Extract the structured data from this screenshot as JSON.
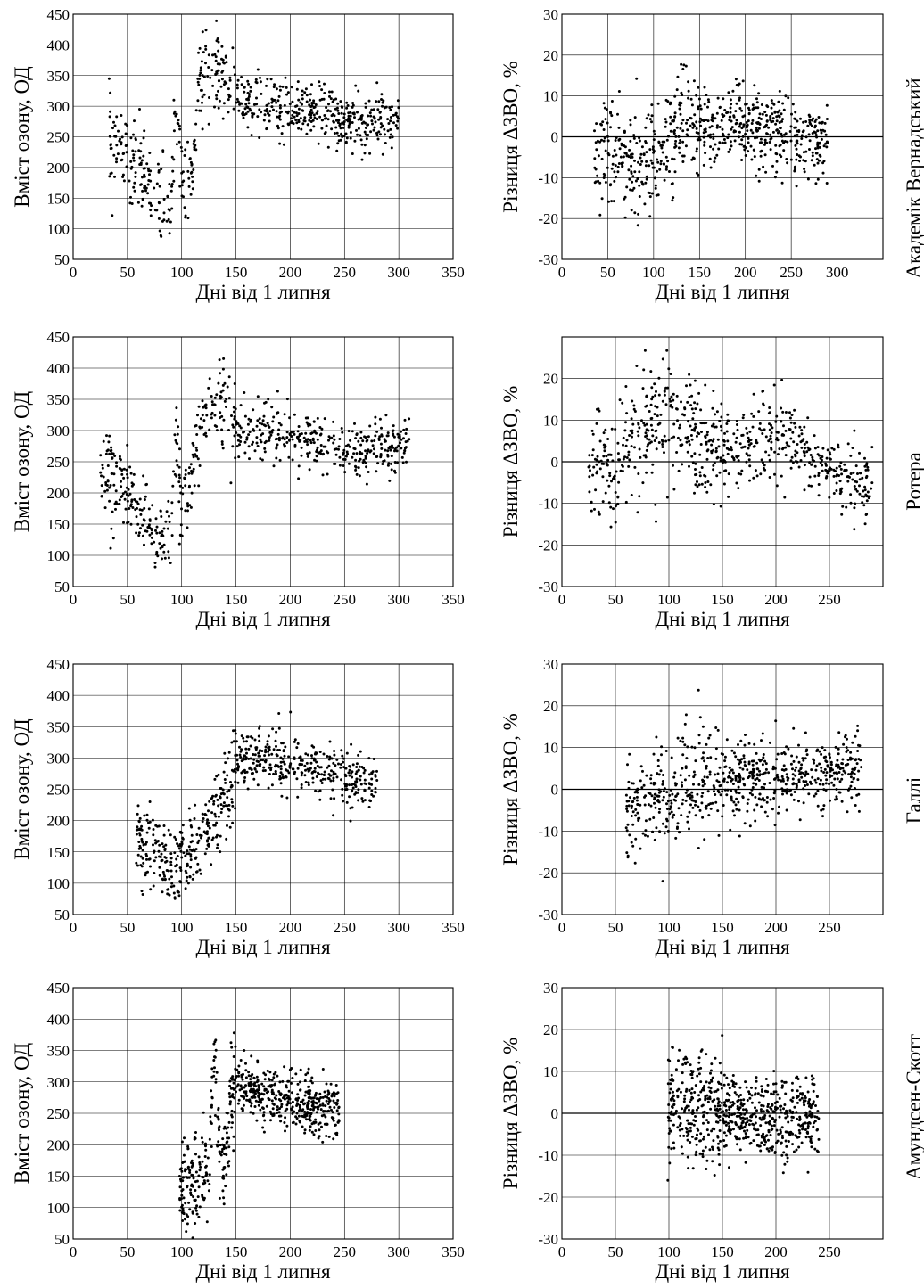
{
  "figure_caption": "",
  "common": {
    "xlabel": "Дні від 1 липня",
    "ozone_ylabel": "Вміст озону, ОД",
    "diff_ylabel": "Різниця ΔЗВО, %"
  },
  "stations": [
    {
      "name": "Академік Вернадський"
    },
    {
      "name": "Ротера"
    },
    {
      "name": "Галлі"
    },
    {
      "name": "Амундсен-Скотт"
    }
  ],
  "chart_data": [
    {
      "id": "vernadsky-ozone",
      "type": "scatter",
      "station": "Академік Вернадський",
      "title": "",
      "xlabel": "Дні від 1 липня",
      "ylabel": "Вміст озону, ОД",
      "xlim": [
        0,
        350
      ],
      "ylim": [
        50,
        450
      ],
      "xticks": [
        0,
        50,
        100,
        150,
        200,
        250,
        300,
        350
      ],
      "yticks": [
        50,
        100,
        150,
        200,
        250,
        300,
        350,
        400,
        450
      ],
      "grid": true,
      "x": [
        33,
        40,
        50,
        60,
        70,
        80,
        90,
        95,
        100,
        105,
        110,
        115,
        120,
        130,
        140,
        150,
        170,
        200,
        230,
        250,
        270,
        290,
        300
      ],
      "y": [
        250,
        235,
        215,
        190,
        170,
        145,
        140,
        280,
        190,
        160,
        180,
        330,
        350,
        360,
        340,
        310,
        305,
        300,
        290,
        275,
        270,
        280,
        285
      ]
    },
    {
      "id": "vernadsky-diff",
      "type": "scatter",
      "station": "Академік Вернадський",
      "title": "",
      "xlabel": "Дні від 1 липня",
      "ylabel": "Різниця ΔЗВО, %",
      "xlim": [
        0,
        350
      ],
      "ylim": [
        -30,
        30
      ],
      "xticks": [
        0,
        50,
        100,
        150,
        200,
        250,
        300
      ],
      "yticks": [
        -30,
        -20,
        -10,
        0,
        10,
        20,
        30
      ],
      "grid": true,
      "zero_line": true,
      "x": [
        35,
        45,
        50,
        60,
        70,
        80,
        90,
        100,
        110,
        120,
        130,
        150,
        170,
        200,
        230,
        250,
        270,
        290
      ],
      "y": [
        -5,
        -2,
        -4,
        -3,
        -6,
        -8,
        -7,
        -6,
        -4,
        -2,
        2,
        2,
        2,
        3,
        1,
        0,
        -1,
        -2
      ]
    },
    {
      "id": "rothera-ozone",
      "type": "scatter",
      "station": "Ротера",
      "title": "",
      "xlabel": "Дні від 1 липня",
      "ylabel": "Вміст озону, ОД",
      "xlim": [
        0,
        350
      ],
      "ylim": [
        50,
        450
      ],
      "xticks": [
        0,
        50,
        100,
        150,
        200,
        250,
        300,
        350
      ],
      "yticks": [
        50,
        100,
        150,
        200,
        250,
        300,
        350,
        400,
        450
      ],
      "grid": true,
      "x": [
        25,
        30,
        40,
        50,
        60,
        70,
        80,
        90,
        95,
        100,
        110,
        120,
        130,
        140,
        150,
        170,
        200,
        230,
        250,
        270,
        290,
        310
      ],
      "y": [
        240,
        230,
        225,
        195,
        175,
        150,
        135,
        135,
        280,
        155,
        220,
        330,
        350,
        340,
        305,
        300,
        290,
        280,
        265,
        260,
        270,
        275
      ]
    },
    {
      "id": "rothera-diff",
      "type": "scatter",
      "station": "Ротера",
      "title": "",
      "xlabel": "Дні від 1 липня",
      "ylabel": "Різниця ΔЗВО, %",
      "xlim": [
        0,
        300
      ],
      "ylim": [
        -30,
        30
      ],
      "xticks": [
        0,
        50,
        100,
        150,
        200,
        250
      ],
      "yticks": [
        -30,
        -20,
        -10,
        0,
        10,
        20
      ],
      "grid": true,
      "zero_line": true,
      "x": [
        25,
        35,
        45,
        55,
        65,
        75,
        85,
        95,
        105,
        115,
        125,
        135,
        150,
        170,
        190,
        200,
        210,
        230,
        250,
        270,
        290
      ],
      "y": [
        2,
        0,
        -3,
        2,
        5,
        7,
        9,
        10,
        10,
        9,
        7,
        4,
        3,
        3,
        6,
        8,
        6,
        2,
        -1,
        -4,
        -6
      ]
    },
    {
      "id": "halley-ozone",
      "type": "scatter",
      "station": "Галлі",
      "title": "",
      "xlabel": "Дні від 1 липня",
      "ylabel": "Вміст озону, ОД",
      "xlim": [
        0,
        350
      ],
      "ylim": [
        50,
        450
      ],
      "xticks": [
        0,
        50,
        100,
        150,
        200,
        250,
        300,
        350
      ],
      "yticks": [
        50,
        100,
        150,
        200,
        250,
        300,
        350,
        400,
        450
      ],
      "grid": true,
      "x": [
        58,
        65,
        75,
        85,
        95,
        105,
        115,
        125,
        135,
        145,
        155,
        165,
        180,
        200,
        220,
        240,
        260,
        280
      ],
      "y": [
        175,
        160,
        145,
        130,
        125,
        135,
        160,
        190,
        220,
        250,
        300,
        305,
        295,
        290,
        285,
        275,
        265,
        260
      ]
    },
    {
      "id": "halley-diff",
      "type": "scatter",
      "station": "Галлі",
      "title": "",
      "xlabel": "Дні від 1 липня",
      "ylabel": "Різниця ΔЗВО, %",
      "xlim": [
        0,
        300
      ],
      "ylim": [
        -30,
        30
      ],
      "xticks": [
        0,
        50,
        100,
        150,
        200,
        250
      ],
      "yticks": [
        -30,
        -20,
        -10,
        0,
        10,
        20,
        30
      ],
      "grid": true,
      "zero_line": true,
      "x": [
        60,
        70,
        80,
        90,
        100,
        110,
        120,
        140,
        160,
        180,
        200,
        220,
        240,
        260,
        280
      ],
      "y": [
        -6,
        -3,
        -2,
        -1,
        1,
        1,
        1,
        0,
        1,
        2,
        3,
        3,
        4,
        5,
        5
      ]
    },
    {
      "id": "amundsen-ozone",
      "type": "scatter",
      "station": "Амундсен-Скотт",
      "title": "",
      "xlabel": "Дні від 1 липня",
      "ylabel": "Вміст озону, ОД",
      "xlim": [
        0,
        350
      ],
      "ylim": [
        50,
        450
      ],
      "xticks": [
        0,
        50,
        100,
        150,
        200,
        250,
        300,
        350
      ],
      "yticks": [
        50,
        100,
        150,
        200,
        250,
        300,
        350,
        400,
        450
      ],
      "grid": true,
      "x": [
        98,
        105,
        115,
        125,
        130,
        135,
        140,
        145,
        150,
        160,
        170,
        180,
        190,
        200,
        215,
        230,
        245
      ],
      "y": [
        125,
        130,
        145,
        160,
        340,
        200,
        180,
        270,
        300,
        290,
        290,
        275,
        270,
        265,
        260,
        260,
        255
      ]
    },
    {
      "id": "amundsen-diff",
      "type": "scatter",
      "station": "Амундсен-Скотт",
      "title": "",
      "xlabel": "Дні від 1 липня",
      "ylabel": "Різниця ΔЗВО, %",
      "xlim": [
        0,
        300
      ],
      "ylim": [
        -30,
        30
      ],
      "xticks": [
        0,
        50,
        100,
        150,
        200,
        250
      ],
      "yticks": [
        -30,
        -20,
        -10,
        0,
        10,
        20,
        30
      ],
      "grid": true,
      "zero_line": true,
      "x": [
        98,
        110,
        120,
        130,
        140,
        150,
        160,
        170,
        180,
        190,
        200,
        210,
        220,
        230,
        240
      ],
      "y": [
        2,
        3,
        2,
        1,
        0,
        -1,
        -1,
        -1,
        -1,
        -1,
        -1,
        -1,
        -1,
        -1,
        -1
      ]
    }
  ]
}
